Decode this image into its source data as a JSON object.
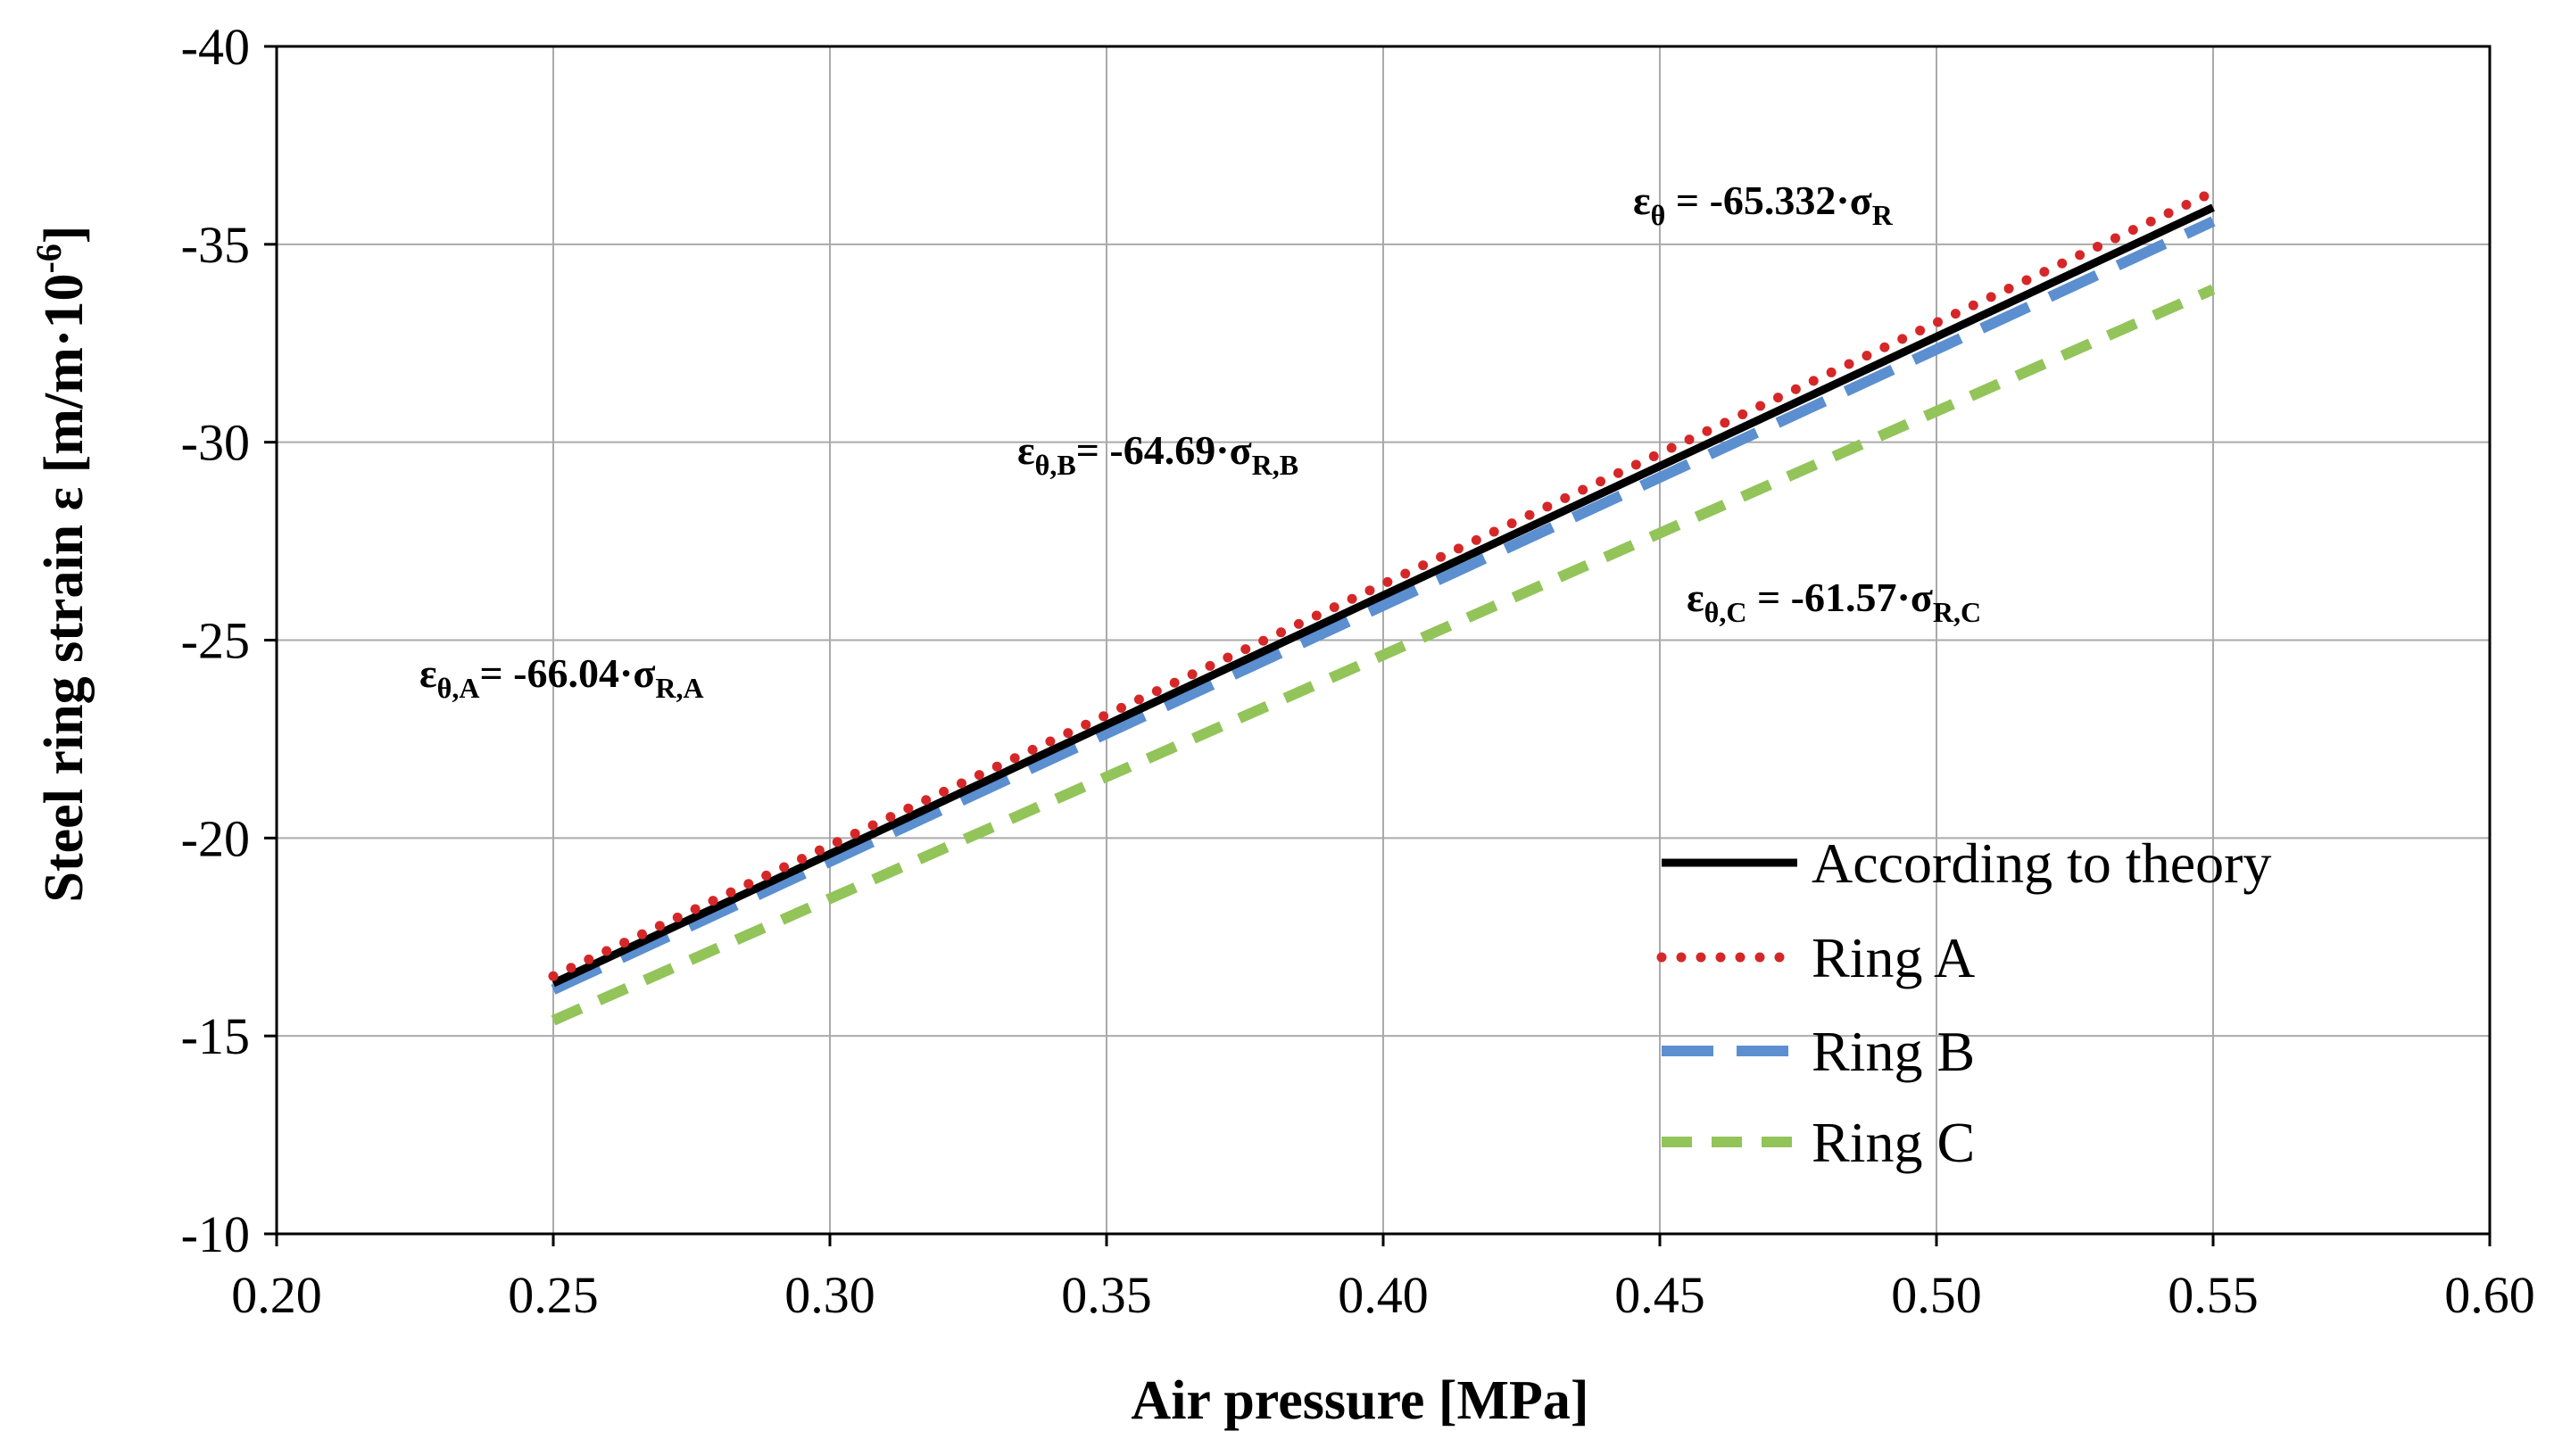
{
  "chart_data": {
    "type": "line",
    "xlabel": "Air pressure  [MPa]",
    "ylabel": "Steel ring strain   ε [m/m·10⁻⁶]",
    "ylabel_main": "Steel ring strain   ε [m/m·10",
    "ylabel_exp": "-6",
    "ylabel_close": "]",
    "xlim": [
      0.2,
      0.6
    ],
    "ylim": [
      -10,
      -40
    ],
    "grid": true,
    "legend_position": "bottom-right",
    "x_ticks": [
      "0.20",
      "0.25",
      "0.30",
      "0.35",
      "0.40",
      "0.45",
      "0.50",
      "0.55",
      "0.60"
    ],
    "x_tick_values": [
      0.2,
      0.25,
      0.3,
      0.35,
      0.4,
      0.45,
      0.5,
      0.55,
      0.6
    ],
    "y_ticks": [
      "-10",
      "-15",
      "-20",
      "-25",
      "-30",
      "-35",
      "-40"
    ],
    "y_tick_values": [
      -10,
      -15,
      -20,
      -25,
      -30,
      -35,
      -40
    ],
    "series": [
      {
        "name": "According to theory",
        "color": "#000000",
        "style": "solid",
        "x": [
          0.25,
          0.55
        ],
        "y": [
          -16.33,
          -35.93
        ]
      },
      {
        "name": "Ring A",
        "color": "#d62728",
        "style": "dotted",
        "x": [
          0.25,
          0.55
        ],
        "y": [
          -16.51,
          -36.32
        ]
      },
      {
        "name": "Ring B",
        "color": "#5b8fd0",
        "style": "long-dash",
        "x": [
          0.25,
          0.55
        ],
        "y": [
          -16.17,
          -35.58
        ]
      },
      {
        "name": "Ring C",
        "color": "#92c45a",
        "style": "dash",
        "x": [
          0.25,
          0.55
        ],
        "y": [
          -15.39,
          -33.86
        ]
      }
    ],
    "annotations": [
      {
        "key": "theory",
        "main": "ε",
        "sub1": "θ",
        "mid": " = -65.332·σ",
        "sub2": "R"
      },
      {
        "key": "A",
        "main": "ε",
        "sub1": "θ,A",
        "mid": "= -66.04·σ",
        "sub2": "R,A"
      },
      {
        "key": "B",
        "main": "ε",
        "sub1": "θ,B",
        "mid": "= -64.69·σ",
        "sub2": "R,B"
      },
      {
        "key": "C",
        "main": "ε",
        "sub1": "θ,C",
        "mid": " = -61.57·σ",
        "sub2": "R,C"
      }
    ]
  }
}
